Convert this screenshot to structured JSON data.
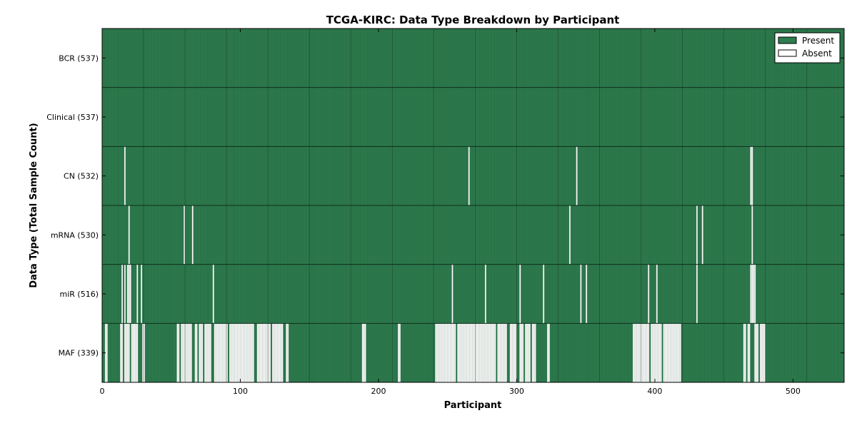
{
  "chart_data": {
    "type": "heatmap",
    "title": "TCGA-KIRC: Data Type Breakdown by Participant",
    "xlabel": "Participant",
    "ylabel": "Data Type (Total Sample Count)",
    "xlim": [
      0,
      537
    ],
    "xticks": [
      0,
      100,
      200,
      300,
      400,
      500
    ],
    "rows": [
      {
        "label": "BCR (537)",
        "absent": []
      },
      {
        "label": "Clinical (537)",
        "absent": []
      },
      {
        "label": "CN (532)",
        "absent": [
          16,
          265,
          343,
          469,
          470
        ]
      },
      {
        "label": "mRNA (530)",
        "absent": [
          19,
          59,
          65,
          338,
          430,
          434,
          470
        ]
      },
      {
        "label": "miR (516)",
        "absent": [
          14,
          16,
          18,
          19,
          20,
          25,
          28,
          80,
          253,
          277,
          302,
          319,
          346,
          350,
          395,
          401,
          430,
          469,
          470,
          471,
          472
        ]
      },
      {
        "label": "MAF (339)",
        "absent": [
          [
            2,
            3
          ],
          [
            13,
            14
          ],
          [
            16,
            19
          ],
          [
            21,
            25
          ],
          [
            29,
            30
          ],
          [
            54,
            55
          ],
          [
            57,
            64
          ],
          [
            67,
            68
          ],
          [
            70,
            72
          ],
          [
            74,
            78
          ],
          [
            81,
            90
          ],
          [
            92,
            109
          ],
          [
            112,
            121
          ],
          [
            123,
            130
          ],
          [
            133,
            134
          ],
          [
            188,
            190
          ],
          [
            214,
            215
          ],
          [
            241,
            255
          ],
          [
            257,
            284
          ],
          [
            286,
            292
          ],
          [
            295,
            299
          ],
          [
            302,
            304
          ],
          [
            306,
            309
          ],
          [
            311,
            313
          ],
          [
            322,
            323
          ],
          [
            384,
            395
          ],
          [
            397,
            404
          ],
          [
            406,
            418
          ],
          [
            464,
            465
          ],
          [
            467,
            468
          ],
          [
            472,
            474
          ],
          [
            476,
            479
          ]
        ]
      }
    ],
    "legend": [
      {
        "label": "Present",
        "color": "#2e7d4f"
      },
      {
        "label": "Absent",
        "color": "#ffffff"
      }
    ],
    "legend_position": "top-right"
  }
}
